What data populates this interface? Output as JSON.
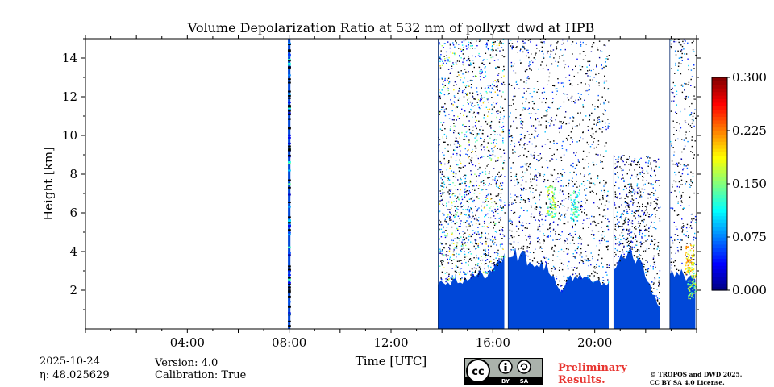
{
  "chart_data": {
    "type": "heatmap",
    "title": "Volume Depolarization Ratio at 532 nm of pollyxt_dwd at HPB",
    "xlabel": "Time [UTC]",
    "ylabel": "Height [km]",
    "xlim_hours": [
      0,
      24
    ],
    "ylim_km": [
      0,
      15
    ],
    "x_tick_values": [
      4,
      8,
      12,
      16,
      20
    ],
    "x_tick_labels": [
      "04:00",
      "08:00",
      "12:00",
      "16:00",
      "20:00"
    ],
    "y_tick_values": [
      2,
      4,
      6,
      8,
      10,
      12,
      14
    ],
    "y_tick_labels": [
      "2",
      "4",
      "6",
      "8",
      "10",
      "12",
      "14"
    ],
    "colorbar": {
      "range": [
        0.0,
        0.3
      ],
      "tick_values": [
        0.0,
        0.075,
        0.15,
        0.225,
        0.3
      ],
      "tick_labels": [
        "0.000",
        "0.075",
        "0.150",
        "0.225",
        "0.300"
      ],
      "colormap": "jet"
    },
    "data_segments": [
      {
        "start_h": 7.95,
        "end_h": 8.05,
        "top_km": 15.0
      },
      {
        "start_h": 13.85,
        "end_h": 16.45,
        "top_km": 15.0
      },
      {
        "start_h": 16.6,
        "end_h": 20.55,
        "top_km": 15.0
      },
      {
        "start_h": 20.75,
        "end_h": 22.55,
        "top_km": 9.0
      },
      {
        "start_h": 22.95,
        "end_h": 23.95,
        "top_km": 15.0
      }
    ],
    "low_layer": [
      {
        "t": 13.85,
        "h": 2.4
      },
      {
        "t": 15.0,
        "h": 2.6
      },
      {
        "t": 16.0,
        "h": 3.0
      },
      {
        "t": 16.6,
        "h": 4.0
      },
      {
        "t": 17.0,
        "h": 3.8
      },
      {
        "t": 17.6,
        "h": 3.5
      },
      {
        "t": 18.2,
        "h": 3.2
      },
      {
        "t": 18.5,
        "h": 2.2
      },
      {
        "t": 18.7,
        "h": 1.8
      },
      {
        "t": 19.0,
        "h": 2.8
      },
      {
        "t": 19.5,
        "h": 2.6
      },
      {
        "t": 20.0,
        "h": 2.4
      },
      {
        "t": 20.5,
        "h": 2.3
      },
      {
        "t": 20.75,
        "h": 3.2
      },
      {
        "t": 21.3,
        "h": 4.0
      },
      {
        "t": 21.8,
        "h": 3.5
      },
      {
        "t": 22.2,
        "h": 2.0
      },
      {
        "t": 22.55,
        "h": 1.2
      },
      {
        "t": 22.95,
        "h": 3.0
      },
      {
        "t": 23.5,
        "h": 2.8
      },
      {
        "t": 23.95,
        "h": 2.5
      }
    ],
    "features": [
      {
        "label": "aerosol patch",
        "t": 18.3,
        "h": 6.6,
        "value": 0.15
      },
      {
        "label": "aerosol patch",
        "t": 19.2,
        "h": 6.4,
        "value": 0.12
      },
      {
        "label": "dust layer",
        "t": 23.7,
        "h": 3.6,
        "value": 0.2
      },
      {
        "label": "dust layer",
        "t": 23.8,
        "h": 2.4,
        "value": 0.16
      }
    ]
  },
  "footer": {
    "date": "2025-10-24",
    "eta": "η: 48.025629",
    "version": "Version: 4.0",
    "calibration": "Calibration: True",
    "preliminary": "Preliminary Results.",
    "copyright_line1": "© TROPOS and DWD 2025.",
    "copyright_line2": "CC BY SA 4.0 License.",
    "license_badge": [
      "cc",
      "BY",
      "SA"
    ]
  },
  "colors": {
    "no_data": "#ffffff",
    "low_value": "#0047d8",
    "noise": "#000000",
    "preliminary": "#e8342f",
    "badge_bg": "#aab2ab"
  }
}
